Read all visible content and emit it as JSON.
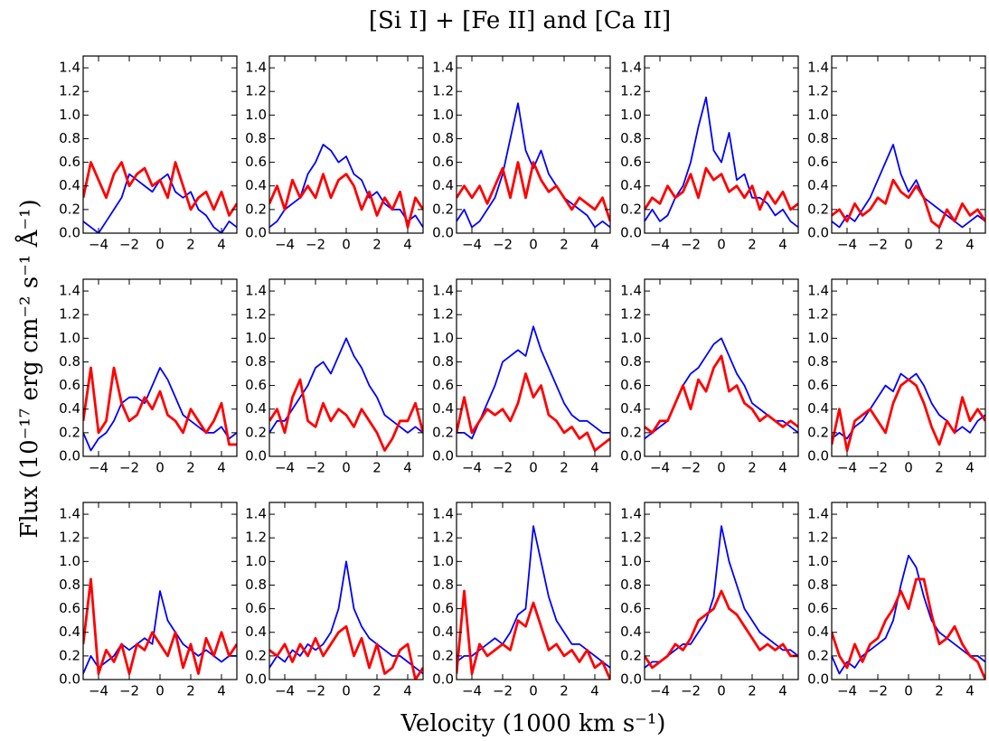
{
  "chart_data": {
    "type": "line",
    "title": "[Si I] + [Fe II] and [Ca II]",
    "xlabel": "Velocity (1000 km s⁻¹)",
    "ylabel": "Flux (10⁻¹⁷ erg cm⁻² s⁻¹ Å⁻¹)",
    "xlim": [
      -5,
      5
    ],
    "ylim": [
      0,
      1.5
    ],
    "xticks": [
      {
        "value": -4,
        "label": "−4"
      },
      {
        "value": -2,
        "label": "−2"
      },
      0,
      2,
      4
    ],
    "yticks": [
      {
        "value": 0,
        "label": "0.0"
      },
      {
        "value": 0.2,
        "label": "0.2"
      },
      {
        "value": 0.4,
        "label": "0.4"
      },
      {
        "value": 0.6,
        "label": "0.6"
      },
      {
        "value": 0.8,
        "label": "0.8"
      },
      {
        "value": 1.0,
        "label": "1.0"
      },
      {
        "value": 1.2,
        "label": "1.2"
      },
      {
        "value": 1.4,
        "label": "1.4"
      }
    ],
    "x": [
      -5,
      -4.5,
      -4,
      -3.5,
      -3,
      -2.5,
      -2,
      -1.5,
      -1,
      -0.5,
      0,
      0.5,
      1,
      1.5,
      2,
      2.5,
      3,
      3.5,
      4,
      4.5,
      5
    ],
    "panels": [
      {
        "series": [
          {
            "color": "#0000ff",
            "values": [
              0.1,
              0.05,
              0.0,
              0.1,
              0.2,
              0.3,
              0.5,
              0.45,
              0.4,
              0.35,
              0.45,
              0.5,
              0.35,
              0.3,
              0.35,
              0.2,
              0.15,
              0.05,
              0.0,
              0.1,
              0.05
            ]
          },
          {
            "color": "#ff0000",
            "values": [
              0.3,
              0.6,
              0.45,
              0.3,
              0.5,
              0.6,
              0.4,
              0.5,
              0.55,
              0.4,
              0.45,
              0.3,
              0.6,
              0.4,
              0.2,
              0.3,
              0.35,
              0.2,
              0.35,
              0.15,
              0.25
            ]
          }
        ]
      },
      {
        "series": [
          {
            "color": "#0000ff",
            "values": [
              0.05,
              0.1,
              0.2,
              0.25,
              0.3,
              0.5,
              0.6,
              0.75,
              0.7,
              0.6,
              0.65,
              0.5,
              0.45,
              0.3,
              0.35,
              0.25,
              0.2,
              0.2,
              0.1,
              0.15,
              0.05
            ]
          },
          {
            "color": "#ff0000",
            "values": [
              0.25,
              0.4,
              0.2,
              0.45,
              0.3,
              0.4,
              0.3,
              0.5,
              0.3,
              0.45,
              0.5,
              0.4,
              0.2,
              0.35,
              0.15,
              0.3,
              0.2,
              0.35,
              0.05,
              0.3,
              0.2
            ]
          }
        ]
      },
      {
        "series": [
          {
            "color": "#0000ff",
            "values": [
              0.1,
              0.2,
              0.05,
              0.1,
              0.2,
              0.3,
              0.5,
              0.8,
              1.1,
              0.7,
              0.55,
              0.7,
              0.5,
              0.4,
              0.3,
              0.25,
              0.2,
              0.15,
              0.05,
              0.1,
              0.05
            ]
          },
          {
            "color": "#ff0000",
            "values": [
              0.3,
              0.4,
              0.3,
              0.4,
              0.25,
              0.4,
              0.55,
              0.3,
              0.6,
              0.3,
              0.6,
              0.45,
              0.35,
              0.4,
              0.3,
              0.2,
              0.3,
              0.25,
              0.2,
              0.3,
              0.1
            ]
          }
        ]
      },
      {
        "series": [
          {
            "color": "#0000ff",
            "values": [
              0.1,
              0.2,
              0.1,
              0.15,
              0.3,
              0.4,
              0.6,
              0.9,
              1.15,
              0.7,
              0.6,
              0.85,
              0.45,
              0.5,
              0.3,
              0.3,
              0.25,
              0.15,
              0.2,
              0.1,
              0.05
            ]
          },
          {
            "color": "#ff0000",
            "values": [
              0.2,
              0.3,
              0.25,
              0.4,
              0.3,
              0.35,
              0.5,
              0.3,
              0.55,
              0.45,
              0.5,
              0.35,
              0.4,
              0.3,
              0.4,
              0.2,
              0.35,
              0.25,
              0.35,
              0.2,
              0.25
            ]
          }
        ]
      },
      {
        "series": [
          {
            "color": "#0000ff",
            "values": [
              0.1,
              0.05,
              0.15,
              0.1,
              0.2,
              0.3,
              0.45,
              0.6,
              0.75,
              0.5,
              0.35,
              0.45,
              0.3,
              0.25,
              0.2,
              0.15,
              0.1,
              0.05,
              0.1,
              0.15,
              0.1
            ]
          },
          {
            "color": "#ff0000",
            "values": [
              0.15,
              0.2,
              0.1,
              0.25,
              0.15,
              0.2,
              0.3,
              0.25,
              0.45,
              0.35,
              0.3,
              0.4,
              0.3,
              0.1,
              0.05,
              0.2,
              0.1,
              0.25,
              0.15,
              0.2,
              0.1
            ]
          }
        ]
      },
      {
        "series": [
          {
            "color": "#0000ff",
            "values": [
              0.2,
              0.05,
              0.15,
              0.2,
              0.3,
              0.45,
              0.5,
              0.5,
              0.45,
              0.6,
              0.75,
              0.65,
              0.5,
              0.35,
              0.3,
              0.25,
              0.2,
              0.2,
              0.25,
              0.15,
              0.2
            ]
          },
          {
            "color": "#ff0000",
            "values": [
              0.3,
              0.75,
              0.2,
              0.3,
              0.75,
              0.45,
              0.3,
              0.35,
              0.5,
              0.4,
              0.55,
              0.35,
              0.3,
              0.2,
              0.4,
              0.3,
              0.2,
              0.3,
              0.45,
              0.1,
              0.1
            ]
          }
        ]
      },
      {
        "series": [
          {
            "color": "#0000ff",
            "values": [
              0.2,
              0.3,
              0.3,
              0.4,
              0.5,
              0.6,
              0.75,
              0.8,
              0.7,
              0.85,
              1.0,
              0.85,
              0.75,
              0.6,
              0.5,
              0.35,
              0.3,
              0.25,
              0.2,
              0.25,
              0.2
            ]
          },
          {
            "color": "#ff0000",
            "values": [
              0.3,
              0.4,
              0.2,
              0.5,
              0.65,
              0.3,
              0.25,
              0.45,
              0.3,
              0.4,
              0.35,
              0.25,
              0.4,
              0.3,
              0.2,
              0.05,
              0.15,
              0.3,
              0.3,
              0.45,
              0.2
            ]
          }
        ]
      },
      {
        "series": [
          {
            "color": "#0000ff",
            "values": [
              0.2,
              0.2,
              0.15,
              0.3,
              0.45,
              0.6,
              0.8,
              0.85,
              0.9,
              0.85,
              1.1,
              0.9,
              0.75,
              0.6,
              0.45,
              0.35,
              0.3,
              0.3,
              0.25,
              0.2,
              0.2
            ]
          },
          {
            "color": "#ff0000",
            "values": [
              0.2,
              0.5,
              0.2,
              0.3,
              0.4,
              0.35,
              0.4,
              0.3,
              0.45,
              0.7,
              0.5,
              0.6,
              0.35,
              0.3,
              0.2,
              0.25,
              0.15,
              0.2,
              0.05,
              0.1,
              0.15
            ]
          }
        ]
      },
      {
        "series": [
          {
            "color": "#0000ff",
            "values": [
              0.15,
              0.2,
              0.25,
              0.3,
              0.45,
              0.6,
              0.7,
              0.75,
              0.85,
              0.95,
              1.0,
              0.85,
              0.7,
              0.6,
              0.45,
              0.4,
              0.35,
              0.3,
              0.3,
              0.25,
              0.2
            ]
          },
          {
            "color": "#ff0000",
            "values": [
              0.25,
              0.2,
              0.3,
              0.3,
              0.45,
              0.6,
              0.4,
              0.65,
              0.55,
              0.75,
              0.85,
              0.55,
              0.6,
              0.45,
              0.4,
              0.3,
              0.35,
              0.3,
              0.25,
              0.3,
              0.25
            ]
          }
        ]
      },
      {
        "series": [
          {
            "color": "#0000ff",
            "values": [
              0.15,
              0.2,
              0.15,
              0.25,
              0.3,
              0.4,
              0.5,
              0.6,
              0.55,
              0.7,
              0.65,
              0.7,
              0.6,
              0.45,
              0.35,
              0.3,
              0.2,
              0.25,
              0.2,
              0.3,
              0.35
            ]
          },
          {
            "color": "#ff0000",
            "values": [
              0.1,
              0.4,
              0.05,
              0.3,
              0.35,
              0.4,
              0.3,
              0.2,
              0.45,
              0.6,
              0.65,
              0.6,
              0.45,
              0.25,
              0.1,
              0.3,
              0.2,
              0.5,
              0.3,
              0.4,
              0.3
            ]
          }
        ]
      },
      {
        "series": [
          {
            "color": "#0000ff",
            "values": [
              0.05,
              0.2,
              0.1,
              0.15,
              0.2,
              0.3,
              0.25,
              0.3,
              0.35,
              0.3,
              0.75,
              0.5,
              0.4,
              0.3,
              0.25,
              0.2,
              0.25,
              0.2,
              0.15,
              0.2,
              0.2
            ]
          },
          {
            "color": "#ff0000",
            "values": [
              0.3,
              0.85,
              0.05,
              0.25,
              0.15,
              0.3,
              0.05,
              0.3,
              0.25,
              0.4,
              0.3,
              0.2,
              0.4,
              0.1,
              0.3,
              0.05,
              0.35,
              0.2,
              0.4,
              0.2,
              0.3
            ]
          }
        ]
      },
      {
        "series": [
          {
            "color": "#0000ff",
            "values": [
              0.1,
              0.2,
              0.15,
              0.25,
              0.2,
              0.3,
              0.25,
              0.3,
              0.4,
              0.6,
              1.0,
              0.6,
              0.45,
              0.35,
              0.3,
              0.25,
              0.2,
              0.2,
              0.15,
              0.1,
              0.05
            ]
          },
          {
            "color": "#ff0000",
            "values": [
              0.25,
              0.2,
              0.3,
              0.15,
              0.3,
              0.2,
              0.35,
              0.2,
              0.3,
              0.4,
              0.45,
              0.2,
              0.35,
              0.1,
              0.3,
              0.05,
              0.1,
              0.25,
              0.3,
              0.0,
              0.1
            ]
          }
        ]
      },
      {
        "series": [
          {
            "color": "#0000ff",
            "values": [
              0.15,
              0.2,
              0.2,
              0.25,
              0.3,
              0.35,
              0.3,
              0.4,
              0.55,
              0.6,
              1.3,
              1.0,
              0.7,
              0.5,
              0.4,
              0.3,
              0.3,
              0.25,
              0.2,
              0.15,
              0.1
            ]
          },
          {
            "color": "#ff0000",
            "values": [
              0.05,
              0.75,
              0.05,
              0.3,
              0.2,
              0.25,
              0.3,
              0.25,
              0.5,
              0.45,
              0.65,
              0.45,
              0.25,
              0.3,
              0.2,
              0.25,
              0.15,
              0.25,
              0.1,
              0.15,
              0.0
            ]
          }
        ]
      },
      {
        "series": [
          {
            "color": "#0000ff",
            "values": [
              0.1,
              0.15,
              0.15,
              0.2,
              0.25,
              0.3,
              0.3,
              0.4,
              0.5,
              0.7,
              1.3,
              1.0,
              0.8,
              0.6,
              0.5,
              0.4,
              0.35,
              0.3,
              0.25,
              0.25,
              0.2
            ]
          },
          {
            "color": "#ff0000",
            "values": [
              0.2,
              0.1,
              0.15,
              0.2,
              0.3,
              0.25,
              0.35,
              0.5,
              0.55,
              0.6,
              0.75,
              0.6,
              0.55,
              0.45,
              0.35,
              0.25,
              0.3,
              0.25,
              0.3,
              0.2,
              0.2
            ]
          }
        ]
      },
      {
        "series": [
          {
            "color": "#0000ff",
            "values": [
              0.2,
              0.05,
              0.15,
              0.1,
              0.2,
              0.25,
              0.3,
              0.35,
              0.5,
              0.8,
              1.05,
              0.95,
              0.7,
              0.5,
              0.4,
              0.35,
              0.3,
              0.25,
              0.2,
              0.2,
              0.15
            ]
          },
          {
            "color": "#ff0000",
            "values": [
              0.4,
              0.2,
              0.1,
              0.3,
              0.15,
              0.3,
              0.35,
              0.5,
              0.6,
              0.75,
              0.6,
              0.85,
              0.85,
              0.55,
              0.3,
              0.35,
              0.45,
              0.3,
              0.2,
              0.15,
              0.0
            ]
          }
        ]
      }
    ]
  }
}
